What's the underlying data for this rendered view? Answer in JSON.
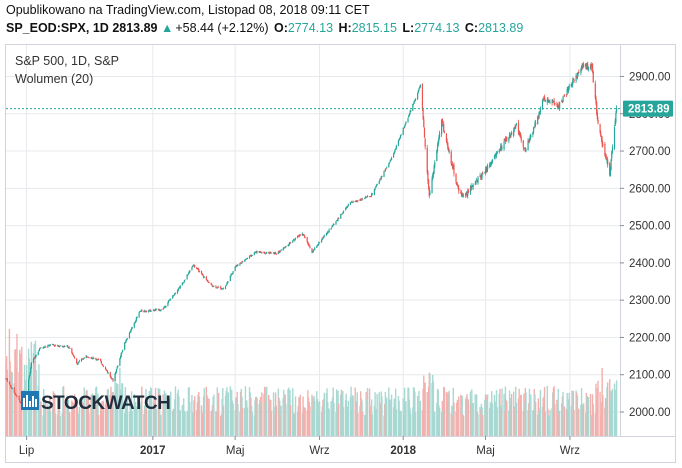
{
  "header": {
    "published": "Opublikowano na TradingView.com, Listopad 08, 2018 09:11 CET",
    "symbol": "SP_EOD:SPX, 1D",
    "last": "2813.89",
    "change_arrow": "▲",
    "change": "+58.44 (+2.12%)",
    "o_label": "O:",
    "o_value": "2774.13",
    "h_label": "H:",
    "h_value": "2815.15",
    "l_label": "L:",
    "l_value": "2774.13",
    "c_label": "C:",
    "c_value": "2813.89"
  },
  "legend": {
    "series_title": "S&P 500, 1D, S&P",
    "volume_title": "Wolumen (20)"
  },
  "price_label": "2813.89",
  "watermark": "STOCKWATCH",
  "colors": {
    "up": "#26a69a",
    "down": "#ef5350",
    "vol_up": "#a8d8d2",
    "vol_down": "#f2b1ae",
    "grid": "#e6e9ed",
    "price_line": "#26a69a",
    "price_label_bg": "#26a69a",
    "watermark_bg": "#1e78b4"
  },
  "chart_data": {
    "type": "candlestick",
    "x_ticks": [
      "Lip",
      "2017",
      "Maj",
      "Wrz",
      "2018",
      "Maj",
      "Wrz"
    ],
    "y_ticks": [
      "2000.00",
      "2100.00",
      "2200.00",
      "2300.00",
      "2400.00",
      "2500.00",
      "2600.00",
      "2700.00",
      "2800.00",
      "2900.00"
    ],
    "ylim": [
      1930,
      2990
    ],
    "grid": true,
    "last_price": 2813.89,
    "close_path": [
      [
        "2016-06-01",
        2090
      ],
      [
        "2016-06-27",
        2010
      ],
      [
        "2016-07-08",
        2130
      ],
      [
        "2016-07-20",
        2170
      ],
      [
        "2016-08-05",
        2180
      ],
      [
        "2016-09-01",
        2175
      ],
      [
        "2016-09-12",
        2130
      ],
      [
        "2016-09-26",
        2150
      ],
      [
        "2016-10-15",
        2140
      ],
      [
        "2016-11-04",
        2085
      ],
      [
        "2016-11-20",
        2180
      ],
      [
        "2016-12-13",
        2270
      ],
      [
        "2017-01-15",
        2275
      ],
      [
        "2017-02-15",
        2350
      ],
      [
        "2017-03-01",
        2395
      ],
      [
        "2017-03-27",
        2340
      ],
      [
        "2017-04-15",
        2330
      ],
      [
        "2017-05-01",
        2390
      ],
      [
        "2017-06-01",
        2430
      ],
      [
        "2017-07-01",
        2425
      ],
      [
        "2017-08-07",
        2480
      ],
      [
        "2017-08-21",
        2430
      ],
      [
        "2017-09-20",
        2500
      ],
      [
        "2017-10-15",
        2560
      ],
      [
        "2017-11-15",
        2580
      ],
      [
        "2017-12-15",
        2680
      ],
      [
        "2018-01-26",
        2875
      ],
      [
        "2018-02-08",
        2580
      ],
      [
        "2018-02-26",
        2780
      ],
      [
        "2018-03-23",
        2590
      ],
      [
        "2018-04-02",
        2580
      ],
      [
        "2018-05-01",
        2650
      ],
      [
        "2018-06-01",
        2730
      ],
      [
        "2018-06-15",
        2770
      ],
      [
        "2018-06-28",
        2700
      ],
      [
        "2018-07-25",
        2840
      ],
      [
        "2018-08-15",
        2820
      ],
      [
        "2018-09-20",
        2930
      ],
      [
        "2018-10-03",
        2925
      ],
      [
        "2018-10-12",
        2770
      ],
      [
        "2018-10-29",
        2640
      ],
      [
        "2018-11-08",
        2814
      ]
    ],
    "volume_bars": "daily volume histogram at the bottom of the pane, teal for up days and red for down days; no volume scale is printed"
  }
}
